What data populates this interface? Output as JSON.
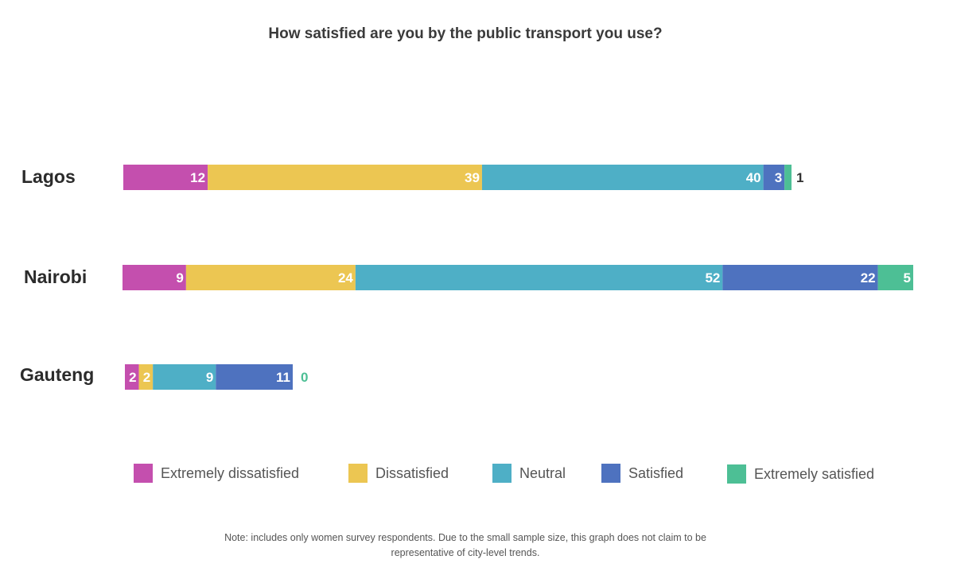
{
  "chart_data": {
    "type": "bar",
    "orientation": "horizontal",
    "stacked": true,
    "title": "How satisfied are you by the public transport you use?",
    "categories": [
      "Lagos",
      "Nairobi",
      "Gauteng"
    ],
    "series": [
      {
        "name": "Extremely dissatisfied",
        "color": "#C44FAE",
        "values": [
          12,
          9,
          2
        ]
      },
      {
        "name": "Dissatisfied",
        "color": "#ECC652",
        "values": [
          39,
          24,
          2
        ]
      },
      {
        "name": "Neutral",
        "color": "#4EAFC6",
        "values": [
          40,
          52,
          9
        ]
      },
      {
        "name": "Satisfied",
        "color": "#4E72BF",
        "values": [
          3,
          22,
          11
        ]
      },
      {
        "name": "Extremely satisfied",
        "color": "#4DBF95",
        "values": [
          1,
          5,
          0
        ]
      }
    ],
    "data_labels": true,
    "legend_position": "bottom",
    "grid": false
  },
  "note_line1": "Note: includes only women survey respondents. Due to the small sample size, this graph does not claim to be",
  "note_line2": "representative of city-level trends."
}
